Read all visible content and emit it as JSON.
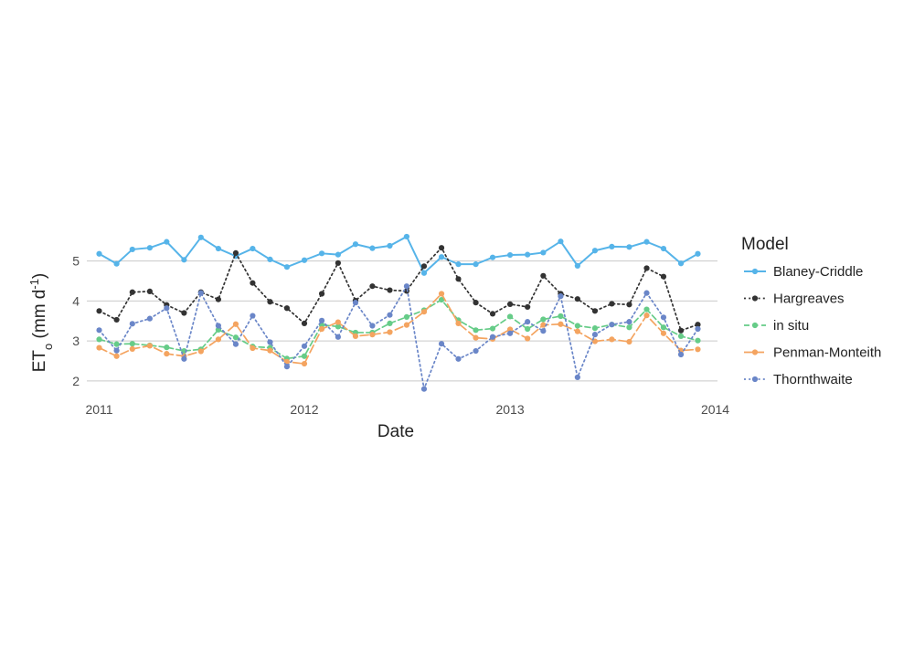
{
  "chart_data": {
    "type": "line",
    "title": "",
    "xlabel": "Date",
    "ylabel": {
      "base": "ET",
      "subscript": "o",
      "unit_prefix": " (mm d",
      "unit_superscript": "-1",
      "unit_suffix": ")"
    },
    "x_ticks": [
      "2011",
      "2012",
      "2013",
      "2014"
    ],
    "y_ticks": [
      2,
      3,
      4,
      5
    ],
    "xlim": [
      "2010-12-10",
      "2014-01-05"
    ],
    "ylim": [
      1.7,
      5.7
    ],
    "grid": "horizontal",
    "legend": {
      "title": "Model",
      "placement": "right"
    },
    "x": [
      "2011-01",
      "2011-02",
      "2011-03",
      "2011-04",
      "2011-05",
      "2011-06",
      "2011-07",
      "2011-08",
      "2011-09",
      "2011-10",
      "2011-11",
      "2011-12",
      "2012-01",
      "2012-02",
      "2012-03",
      "2012-04",
      "2012-05",
      "2012-06",
      "2012-07",
      "2012-08",
      "2012-09",
      "2012-10",
      "2012-11",
      "2012-12",
      "2013-01",
      "2013-02",
      "2013-03",
      "2013-04",
      "2013-05",
      "2013-06",
      "2013-07",
      "2013-08",
      "2013-09",
      "2013-10",
      "2013-11",
      "2013-12"
    ],
    "series": [
      {
        "name": "Blaney-Criddle",
        "color": "#56B4E9",
        "line_style": "solid",
        "values": [
          5.18,
          4.93,
          5.29,
          5.33,
          5.48,
          5.03,
          5.59,
          5.31,
          5.12,
          5.31,
          5.04,
          4.85,
          5.02,
          5.19,
          5.16,
          5.42,
          5.32,
          5.38,
          5.61,
          4.7,
          5.1,
          4.92,
          4.92,
          5.09,
          5.15,
          5.16,
          5.21,
          5.49,
          4.88,
          5.26,
          5.36,
          5.35,
          5.48,
          5.31,
          4.94,
          5.18
        ]
      },
      {
        "name": "Hargreaves",
        "color": "#333333",
        "line_style": "dotted",
        "values": [
          3.75,
          3.53,
          4.22,
          4.24,
          3.9,
          3.7,
          4.22,
          4.04,
          5.2,
          4.45,
          3.98,
          3.82,
          3.44,
          4.18,
          4.95,
          4.01,
          4.37,
          4.27,
          4.25,
          4.87,
          5.33,
          4.55,
          3.96,
          3.68,
          3.92,
          3.85,
          4.63,
          4.18,
          4.05,
          3.75,
          3.93,
          3.91,
          4.82,
          4.61,
          3.26,
          3.41
        ]
      },
      {
        "name": "in situ",
        "color": "#66CC88",
        "line_style": "dashed",
        "values": [
          3.04,
          2.92,
          2.93,
          2.89,
          2.84,
          2.75,
          2.79,
          3.28,
          3.09,
          2.86,
          2.83,
          2.56,
          2.62,
          3.4,
          3.36,
          3.21,
          3.21,
          3.44,
          3.6,
          3.77,
          4.03,
          3.52,
          3.27,
          3.31,
          3.61,
          3.3,
          3.54,
          3.62,
          3.38,
          3.32,
          3.41,
          3.34,
          3.79,
          3.34,
          3.12,
          3.01
        ]
      },
      {
        "name": "Penman-Monteith",
        "color": "#F4A460",
        "line_style": "longdash",
        "values": [
          2.83,
          2.62,
          2.8,
          2.88,
          2.68,
          2.62,
          2.74,
          3.04,
          3.42,
          2.82,
          2.76,
          2.48,
          2.43,
          3.3,
          3.47,
          3.12,
          3.16,
          3.22,
          3.4,
          3.73,
          4.18,
          3.44,
          3.08,
          3.05,
          3.29,
          3.06,
          3.4,
          3.42,
          3.24,
          2.99,
          3.04,
          2.98,
          3.64,
          3.19,
          2.76,
          2.79
        ]
      },
      {
        "name": "Thornthwaite",
        "color": "#6A86C8",
        "line_style": "dotted",
        "values": [
          3.27,
          2.76,
          3.43,
          3.56,
          3.82,
          2.55,
          4.2,
          3.38,
          2.92,
          3.63,
          2.97,
          2.36,
          2.87,
          3.51,
          3.1,
          3.96,
          3.38,
          3.65,
          4.37,
          1.8,
          2.93,
          2.55,
          2.75,
          3.1,
          3.19,
          3.48,
          3.25,
          4.12,
          2.09,
          3.16,
          3.41,
          3.48,
          4.2,
          3.59,
          2.66,
          3.3
        ]
      }
    ]
  }
}
